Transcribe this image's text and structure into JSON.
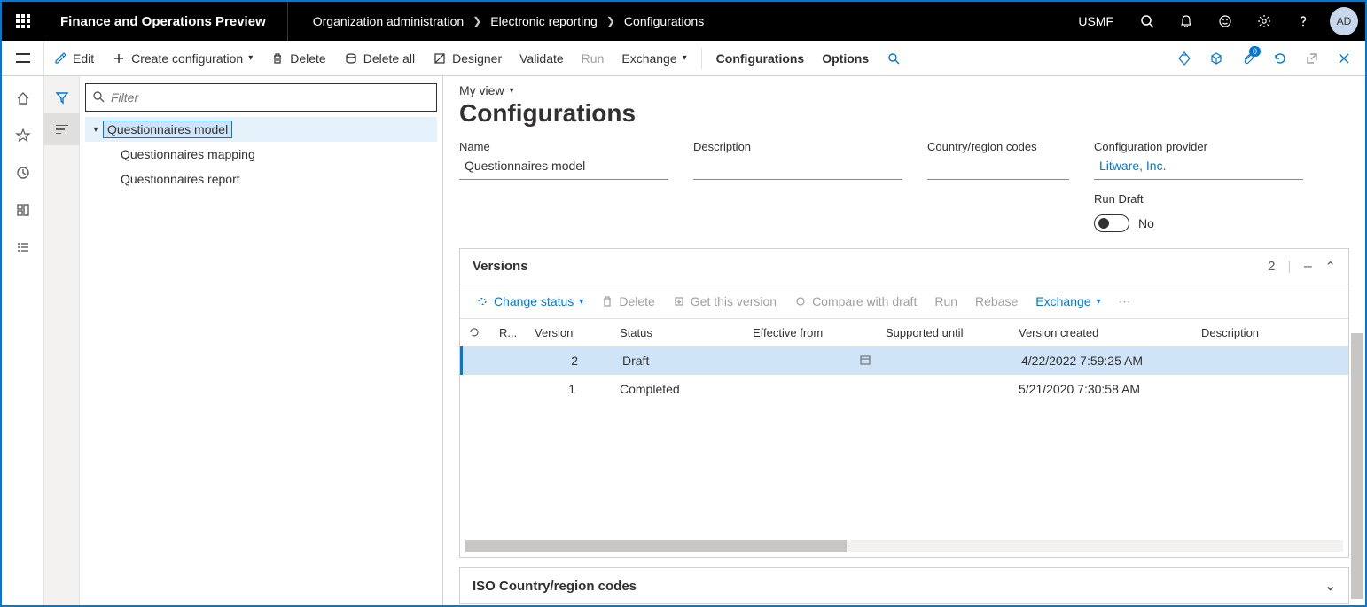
{
  "topbar": {
    "app_title": "Finance and Operations Preview",
    "breadcrumb": [
      "Organization administration",
      "Electronic reporting",
      "Configurations"
    ],
    "company": "USMF",
    "avatar": "AD"
  },
  "actionbar": {
    "edit": "Edit",
    "create": "Create configuration",
    "delete": "Delete",
    "delete_all": "Delete all",
    "designer": "Designer",
    "validate": "Validate",
    "run": "Run",
    "exchange": "Exchange",
    "configurations": "Configurations",
    "options": "Options",
    "attach_badge": "0"
  },
  "tree": {
    "filter_placeholder": "Filter",
    "items": [
      {
        "label": "Questionnaires model",
        "expanded": true,
        "selected": true
      },
      {
        "label": "Questionnaires mapping",
        "child": true
      },
      {
        "label": "Questionnaires report",
        "child": true
      }
    ]
  },
  "content": {
    "myview": "My view",
    "title": "Configurations",
    "fields": {
      "name_label": "Name",
      "name_value": "Questionnaires model",
      "desc_label": "Description",
      "desc_value": "",
      "country_label": "Country/region codes",
      "country_value": "",
      "provider_label": "Configuration provider",
      "provider_value": "Litware, Inc.",
      "rundraft_label": "Run Draft",
      "rundraft_value": "No"
    },
    "versions": {
      "section_title": "Versions",
      "count": "2",
      "dashes": "--",
      "toolbar": {
        "change_status": "Change status",
        "delete": "Delete",
        "get": "Get this version",
        "compare": "Compare with draft",
        "run": "Run",
        "rebase": "Rebase",
        "exchange": "Exchange"
      },
      "columns": {
        "r": "R...",
        "version": "Version",
        "status": "Status",
        "effective": "Effective from",
        "supported": "Supported until",
        "created": "Version created",
        "desc": "Description"
      },
      "rows": [
        {
          "version": "2",
          "status": "Draft",
          "effective": "",
          "supported": "",
          "created": "4/22/2022 7:59:25 AM",
          "desc": "",
          "selected": true,
          "show_cal": true
        },
        {
          "version": "1",
          "status": "Completed",
          "effective": "",
          "supported": "",
          "created": "5/21/2020 7:30:58 AM",
          "desc": "",
          "selected": false,
          "show_cal": false
        }
      ]
    },
    "iso_title": "ISO Country/region codes"
  }
}
